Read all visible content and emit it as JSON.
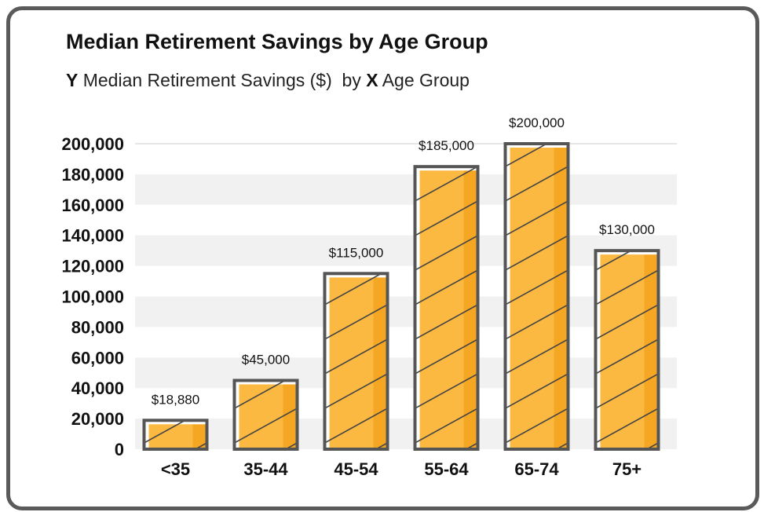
{
  "title": "Median Retirement Savings by Age Group",
  "axis_prefix": {
    "y": "Y",
    "by": "by",
    "x": "X"
  },
  "chart_data": {
    "type": "bar",
    "title": "Median Retirement Savings by Age Group",
    "ylabel": "Median Retirement Savings ($)",
    "xlabel": "Age Group",
    "categories": [
      "<35",
      "35-44",
      "45-54",
      "55-64",
      "65-74",
      "75+"
    ],
    "values": [
      18880,
      45000,
      115000,
      185000,
      200000,
      130000
    ],
    "data_labels": [
      "$18,880",
      "$45,000",
      "$115,000",
      "$185,000",
      "$200,000",
      "$130,000"
    ],
    "ylim": [
      0,
      200000
    ],
    "yticks": [
      0,
      20000,
      40000,
      60000,
      80000,
      100000,
      120000,
      140000,
      160000,
      180000,
      200000
    ],
    "ytick_labels": [
      "0",
      "20,000",
      "40,000",
      "60,000",
      "80,000",
      "100,000",
      "120,000",
      "140,000",
      "160,000",
      "180,000",
      "200,000"
    ],
    "grid": true,
    "bar_color": "#fbb941",
    "bar_edge_color": "#555555",
    "band_color": "#f1f1f1"
  }
}
